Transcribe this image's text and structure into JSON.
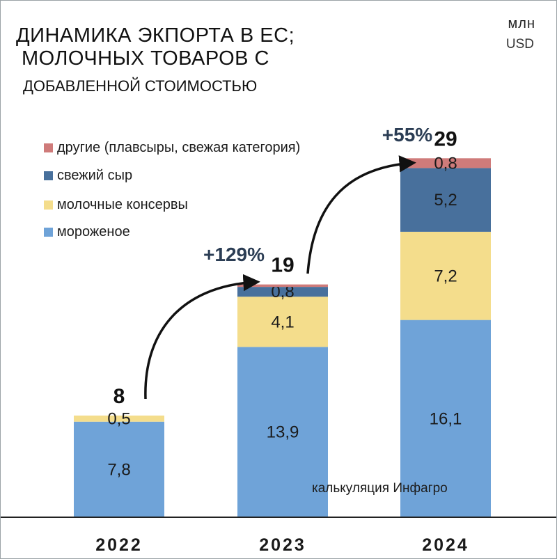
{
  "title": {
    "line1": "ДИНАМИКА ЭКПОРТА В ЕС;",
    "line2": "МОЛОЧНЫХ ТОВАРОВ С",
    "line3": "ДОБАВЛЕННОЙ СТОИМОСТЬЮ"
  },
  "unit": {
    "line1": "млн",
    "line2": "USD"
  },
  "source": "калькуляция Инфагро",
  "colors": {
    "ice_cream": "#6fa3d8",
    "canned": "#f4dd8c",
    "fresh_cheese": "#48709c",
    "other": "#cf7b7a",
    "axis": "#222222",
    "annotation": "#2b3d54"
  },
  "chart_data": {
    "type": "bar",
    "stacked": true,
    "categories": [
      "2022",
      "2023",
      "2024"
    ],
    "series": [
      {
        "name": "мороженое",
        "color": "#6fa3d8",
        "values": [
          7.8,
          13.9,
          16.1
        ],
        "labels": [
          "7,8",
          "13,9",
          "16,1"
        ]
      },
      {
        "name": "молочные консервы",
        "color": "#f4dd8c",
        "values": [
          0.5,
          4.1,
          7.2
        ],
        "labels": [
          "0,5",
          "4,1",
          "7,2"
        ]
      },
      {
        "name": "свежий сыр",
        "color": "#48709c",
        "values": [
          0,
          0.8,
          5.2
        ],
        "labels": [
          "",
          "0,8",
          "5,2"
        ]
      },
      {
        "name": "другие (плавсыры, свежая категория)",
        "color": "#cf7b7a",
        "values": [
          0,
          0.2,
          0.8
        ],
        "labels": [
          "",
          "",
          "0,8"
        ]
      }
    ],
    "totals": [
      "8",
      "19",
      "29"
    ],
    "growth": [
      {
        "from": "2022",
        "to": "2023",
        "label": "+129%"
      },
      {
        "from": "2023",
        "to": "2024",
        "label": "+55%"
      }
    ],
    "ylim": [
      0,
      30.5
    ],
    "legend_position": "top-left",
    "grid": false
  }
}
